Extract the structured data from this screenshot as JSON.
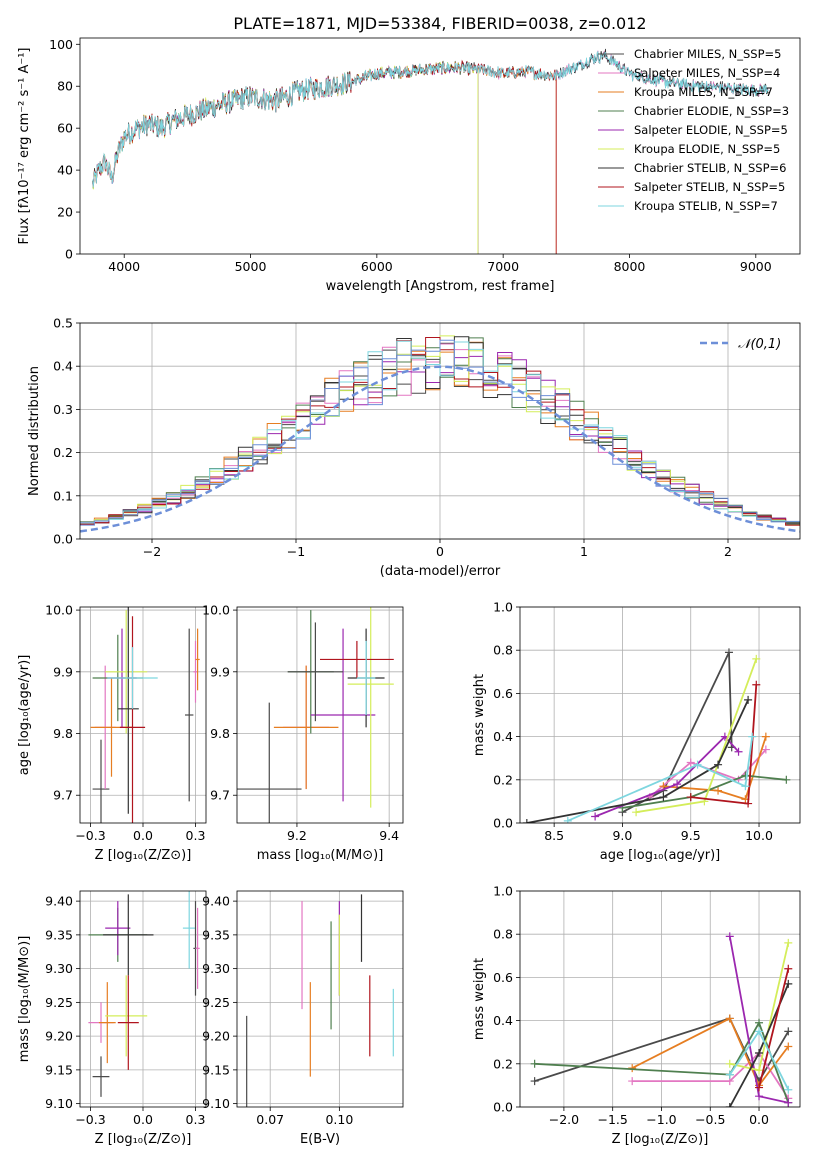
{
  "title": "PLATE=1871, MJD=53384, FIBERID=0038, z=0.012",
  "colors": {
    "c0": "#4a4a4a",
    "c1": "#e377c2",
    "c2": "#e67e22",
    "c3": "#4f7f4f",
    "c4": "#9b27af",
    "c5": "#d4ed5a",
    "c6": "#333333",
    "c7": "#b0151e",
    "c8": "#7ed6df",
    "blue": "#6d8fd8"
  },
  "chart_data": [
    {
      "id": "spectrum",
      "type": "line",
      "xlabel": "wavelength [Angstrom, rest frame]",
      "ylabel": "Flux [fλ10⁻¹⁷ erg cm⁻² s⁻¹ A⁻¹]",
      "xlim": [
        3650,
        9350
      ],
      "ylim": [
        0,
        103
      ],
      "xticks": [
        4000,
        5000,
        6000,
        7000,
        8000,
        9000
      ],
      "yticks": [
        0,
        20,
        40,
        60,
        80,
        100
      ],
      "grid": false,
      "legend_position": "top-right",
      "continuum": {
        "x": [
          3750,
          3800,
          3850,
          3900,
          3950,
          4000,
          4100,
          4200,
          4300,
          4400,
          4500,
          4600,
          4800,
          5000,
          5200,
          5400,
          5600,
          5800,
          6000,
          6200,
          6400,
          6600,
          6800,
          7000,
          7200,
          7400,
          7600,
          7700,
          7800,
          8000,
          8200,
          8400,
          8600,
          8800,
          9000,
          9100
        ],
        "y": [
          33,
          40,
          44,
          36,
          48,
          56,
          60,
          62,
          60,
          64,
          66,
          68,
          72,
          75,
          73,
          78,
          80,
          82,
          86,
          87,
          88,
          89,
          88,
          86,
          87,
          85,
          90,
          93,
          95,
          86,
          83,
          81,
          80,
          79,
          78,
          79
        ]
      },
      "series": [
        {
          "name": "Chabrier MILES, N_SSP=5",
          "end": 9100
        },
        {
          "name": "Salpeter MILES, N_SSP=4",
          "end": 9100
        },
        {
          "name": "Kroupa MILES, N_SSP=7",
          "end": 7420
        },
        {
          "name": "Chabrier ELODIE, N_SSP=3",
          "end": 6800
        },
        {
          "name": "Salpeter ELODIE, N_SSP=5",
          "end": 6800
        },
        {
          "name": "Kroupa ELODIE, N_SSP=5",
          "end": 6800
        },
        {
          "name": "Chabrier STELIB, N_SSP=6",
          "end": 9100
        },
        {
          "name": "Salpeter STELIB, N_SSP=5",
          "end": 7420
        },
        {
          "name": "Kroupa STELIB, N_SSP=7",
          "end": 9100
        }
      ]
    },
    {
      "id": "histogram",
      "type": "line",
      "xlabel": "(data-model)/error",
      "ylabel": "Normed distribution",
      "xlim": [
        -2.5,
        2.5
      ],
      "ylim": [
        0,
        0.5
      ],
      "xticks": [
        -2,
        -1,
        0,
        1,
        2
      ],
      "yticks": [
        0.0,
        0.1,
        0.2,
        0.3,
        0.4,
        0.5
      ],
      "grid": true,
      "legend_position": "top-right",
      "legend": "𝒩(0,1)",
      "bin_width": 0.1
    },
    {
      "id": "age_vs_Z",
      "type": "scatter",
      "xlabel": "Z [log₁₀(Z/Z⊙)]",
      "ylabel": "age  [log₁₀(age/yr)]",
      "xlim": [
        -0.3,
        0.3
      ],
      "ylim": [
        9.655,
        10.005
      ],
      "xticks": [
        -0.25,
        0.0,
        0.25
      ],
      "yticks": [
        9.7,
        9.8,
        9.9,
        10.0
      ],
      "grid": true,
      "points": [
        {
          "x": -0.2,
          "y": 9.71,
          "ex": 0.04,
          "ey": 0.08
        },
        {
          "x": -0.18,
          "y": 9.81,
          "ex": 0.05,
          "ey": 0.1
        },
        {
          "x": -0.15,
          "y": 9.81,
          "ex": 0.1,
          "ey": 0.08
        },
        {
          "x": -0.12,
          "y": 9.89,
          "ex": 0.12,
          "ey": 0.07
        },
        {
          "x": -0.1,
          "y": 9.89,
          "ex": 0.07,
          "ey": 0.08
        },
        {
          "x": -0.08,
          "y": 9.9,
          "ex": 0.1,
          "ey": 0.1
        },
        {
          "x": -0.07,
          "y": 9.84,
          "ex": 0.05,
          "ey": 0.17
        },
        {
          "x": -0.05,
          "y": 9.81,
          "ex": 0.06,
          "ey": 0.18
        },
        {
          "x": -0.05,
          "y": 9.89,
          "ex": 0.12,
          "ey": 0.05
        },
        {
          "x": 0.22,
          "y": 9.83,
          "ex": 0.02,
          "ey": 0.14
        },
        {
          "x": 0.25,
          "y": 9.9,
          "ex": 0.01,
          "ey": 0.05
        },
        {
          "x": 0.26,
          "y": 9.92,
          "ex": 0.01,
          "ey": 0.05
        }
      ]
    },
    {
      "id": "age_vs_mass",
      "type": "scatter",
      "xlabel": "mass [log₁₀(M/M⊙)]",
      "xlim": [
        9.07,
        9.43
      ],
      "ylim": [
        9.655,
        10.005
      ],
      "xticks": [
        9.2,
        9.4
      ],
      "yticks": [
        9.7,
        9.8,
        9.9,
        10.0
      ],
      "grid": true,
      "points": [
        {
          "x": 9.14,
          "y": 9.71,
          "ex": 0.07,
          "ey": 0.14
        },
        {
          "x": 9.22,
          "y": 9.81,
          "ex": 0.05,
          "ey": 0.1
        },
        {
          "x": 9.22,
          "y": 9.81,
          "ex": 0.07,
          "ey": 0.1
        },
        {
          "x": 9.23,
          "y": 9.9,
          "ex": 0.05,
          "ey": 0.1
        },
        {
          "x": 9.3,
          "y": 9.83,
          "ex": 0.07,
          "ey": 0.14
        },
        {
          "x": 9.36,
          "y": 9.88,
          "ex": 0.05,
          "ey": 0.2
        },
        {
          "x": 9.35,
          "y": 9.89,
          "ex": 0.04,
          "ey": 0.08
        },
        {
          "x": 9.33,
          "y": 9.92,
          "ex": 0.08,
          "ey": 0.03
        },
        {
          "x": 9.35,
          "y": 9.89,
          "ex": 0.02,
          "ey": 0.06
        },
        {
          "x": 9.24,
          "y": 9.9,
          "ex": 0.06,
          "ey": 0.08
        }
      ]
    },
    {
      "id": "weight_vs_age",
      "type": "line",
      "xlabel": "age  [log₁₀(age/yr)]",
      "ylabel": "mass weight",
      "xlim": [
        8.25,
        10.3
      ],
      "ylim": [
        0,
        1
      ],
      "xticks": [
        8.5,
        9.0,
        9.5,
        10.0
      ],
      "yticks": [
        0.0,
        0.2,
        0.4,
        0.6,
        0.8,
        1.0
      ],
      "grid": true,
      "series": [
        {
          "x": [
            9.0,
            9.3,
            9.78,
            9.8
          ],
          "y": [
            0.05,
            0.15,
            0.79,
            0.35
          ]
        },
        {
          "x": [
            9.2,
            9.5,
            9.85,
            10.05
          ],
          "y": [
            0.12,
            0.28,
            0.2,
            0.34
          ]
        },
        {
          "x": [
            9.3,
            9.7,
            9.9,
            10.05
          ],
          "y": [
            0.17,
            0.15,
            0.11,
            0.4
          ]
        },
        {
          "x": [
            9.0,
            9.5,
            9.9,
            10.2
          ],
          "y": [
            0.07,
            0.12,
            0.22,
            0.2
          ]
        },
        {
          "x": [
            8.8,
            9.4,
            9.75,
            9.85
          ],
          "y": [
            0.03,
            0.18,
            0.4,
            0.33
          ]
        },
        {
          "x": [
            9.1,
            9.6,
            9.98
          ],
          "y": [
            0.05,
            0.1,
            0.76
          ]
        },
        {
          "x": [
            8.3,
            9.3,
            9.7,
            9.92
          ],
          "y": [
            0.0,
            0.12,
            0.27,
            0.57
          ]
        },
        {
          "x": [
            9.5,
            9.92,
            9.98
          ],
          "y": [
            0.12,
            0.09,
            0.64
          ]
        },
        {
          "x": [
            8.6,
            9.55,
            9.9,
            9.95
          ],
          "y": [
            0.01,
            0.27,
            0.17,
            0.4
          ]
        }
      ]
    },
    {
      "id": "mass_vs_Z",
      "type": "scatter",
      "xlabel": "Z [log₁₀(Z/Z⊙)]",
      "ylabel": "mass [log₁₀(M/M⊙)]",
      "xlim": [
        -0.3,
        0.3
      ],
      "ylim": [
        9.095,
        9.415
      ],
      "xticks": [
        -0.25,
        0.0,
        0.25
      ],
      "yticks": [
        9.1,
        9.15,
        9.2,
        9.25,
        9.3,
        9.35,
        9.4
      ],
      "grid": true,
      "points": [
        {
          "x": -0.2,
          "y": 9.14,
          "ex": 0.04,
          "ey": 0.03
        },
        {
          "x": -0.2,
          "y": 9.22,
          "ex": 0.06,
          "ey": 0.03
        },
        {
          "x": -0.17,
          "y": 9.22,
          "ex": 0.04,
          "ey": 0.06
        },
        {
          "x": -0.12,
          "y": 9.35,
          "ex": 0.14,
          "ey": 0.04
        },
        {
          "x": -0.12,
          "y": 9.36,
          "ex": 0.06,
          "ey": 0.04
        },
        {
          "x": -0.08,
          "y": 9.23,
          "ex": 0.1,
          "ey": 0.06
        },
        {
          "x": -0.07,
          "y": 9.35,
          "ex": 0.12,
          "ey": 0.06
        },
        {
          "x": -0.07,
          "y": 9.22,
          "ex": 0.05,
          "ey": 0.07
        },
        {
          "x": 0.22,
          "y": 9.36,
          "ex": 0.03,
          "ey": 0.06
        },
        {
          "x": 0.25,
          "y": 9.33,
          "ex": 0.01,
          "ey": 0.07
        },
        {
          "x": 0.26,
          "y": 9.33,
          "ex": 0.01,
          "ey": 0.06
        }
      ]
    },
    {
      "id": "mass_vs_EBV",
      "type": "scatter",
      "xlabel": "E(B-V)",
      "xlim": [
        0.063,
        0.123
      ],
      "ylim": [
        9.095,
        9.415
      ],
      "xticks": [
        0.075,
        0.1
      ],
      "yticks": [
        9.1,
        9.15,
        9.2,
        9.25,
        9.3,
        9.35,
        9.4
      ],
      "grid": true,
      "points": [
        {
          "x": 0.0665,
          "y": 9.16,
          "ey": 0.07
        },
        {
          "x": 0.0865,
          "y": 9.32,
          "ey": 0.08
        },
        {
          "x": 0.0895,
          "y": 9.21,
          "ey": 0.07
        },
        {
          "x": 0.097,
          "y": 9.29,
          "ey": 0.08
        },
        {
          "x": 0.1,
          "y": 9.33,
          "ey": 0.07
        },
        {
          "x": 0.1,
          "y": 9.32,
          "ey": 0.06
        },
        {
          "x": 0.108,
          "y": 9.36,
          "ey": 0.05
        },
        {
          "x": 0.111,
          "y": 9.23,
          "ey": 0.06
        },
        {
          "x": 0.1195,
          "y": 9.22,
          "ey": 0.05
        }
      ]
    },
    {
      "id": "weight_vs_Z",
      "type": "line",
      "xlabel": "Z [log₁₀(Z/Z⊙)]",
      "ylabel": "mass weight",
      "xlim": [
        -2.45,
        0.42
      ],
      "ylim": [
        0,
        1
      ],
      "xticks": [
        -2.0,
        -1.5,
        -1.0,
        -0.5,
        0.0
      ],
      "yticks": [
        0.0,
        0.2,
        0.4,
        0.6,
        0.8,
        1.0
      ],
      "grid": true,
      "series": [
        {
          "x": [
            -2.3,
            -0.3,
            0.0,
            0.3
          ],
          "y": [
            0.12,
            0.41,
            0.12,
            0.35
          ]
        },
        {
          "x": [
            -1.3,
            -0.3,
            0.0,
            0.3
          ],
          "y": [
            0.12,
            0.12,
            0.25,
            0.04
          ]
        },
        {
          "x": [
            -1.3,
            -0.3,
            0.0,
            0.3
          ],
          "y": [
            0.18,
            0.41,
            0.1,
            0.28
          ]
        },
        {
          "x": [
            -2.3,
            -0.3,
            0.0,
            0.3
          ],
          "y": [
            0.2,
            0.15,
            0.39,
            0.02
          ]
        },
        {
          "x": [
            -0.3,
            0.0,
            0.3
          ],
          "y": [
            0.79,
            0.05,
            0.02
          ]
        },
        {
          "x": [
            -0.3,
            0.0,
            0.3
          ],
          "y": [
            0.2,
            0.17,
            0.76
          ]
        },
        {
          "x": [
            -0.3,
            0.0,
            0.3
          ],
          "y": [
            0.0,
            0.25,
            0.57
          ]
        },
        {
          "x": [
            0.0,
            0.3
          ],
          "y": [
            0.09,
            0.64
          ]
        },
        {
          "x": [
            -0.3,
            0.0,
            0.3
          ],
          "y": [
            0.15,
            0.35,
            0.08
          ]
        }
      ]
    }
  ]
}
